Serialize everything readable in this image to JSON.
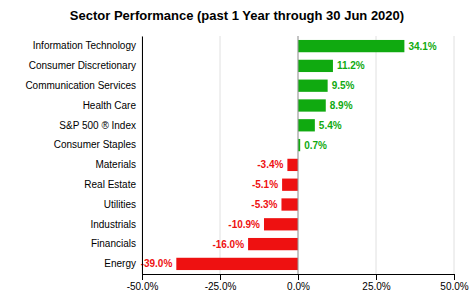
{
  "chart_data": {
    "type": "bar",
    "orientation": "horizontal",
    "title": "Sector Performance (past 1 Year through 30 Jun 2020)",
    "categories": [
      "Energy",
      "Financials",
      "Industrials",
      "Utilities",
      "Real Estate",
      "Materials",
      "Consumer Staples",
      "S&P 500 ® Index",
      "Health Care",
      "Communication Services",
      "Consumer Discretionary",
      "Information Technology"
    ],
    "values": [
      -39.0,
      -16.0,
      -10.9,
      -5.3,
      -5.1,
      -3.4,
      0.7,
      5.4,
      8.9,
      9.5,
      11.2,
      34.1
    ],
    "value_labels": [
      "-39.0%",
      "-16.0%",
      "-10.9%",
      "-5.3%",
      "-5.1%",
      "-3.4%",
      "0.7%",
      "5.4%",
      "8.9%",
      "9.5%",
      "11.2%",
      "34.1%"
    ],
    "colors": [
      "#ee1111",
      "#ee1111",
      "#ee1111",
      "#ee1111",
      "#ee1111",
      "#ee1111",
      "#10aa10",
      "#10aa10",
      "#10aa10",
      "#10aa10",
      "#10aa10",
      "#10aa10"
    ],
    "xlim": [
      -50,
      50
    ],
    "xticks": [
      {
        "value": -50,
        "label": "-50.0%"
      },
      {
        "value": -25,
        "label": "-25.0%"
      },
      {
        "value": 0,
        "label": "0.0%"
      },
      {
        "value": 25,
        "label": "25.0%"
      },
      {
        "value": 50,
        "label": "50.0%"
      }
    ],
    "grid": true,
    "data_labels": true
  }
}
